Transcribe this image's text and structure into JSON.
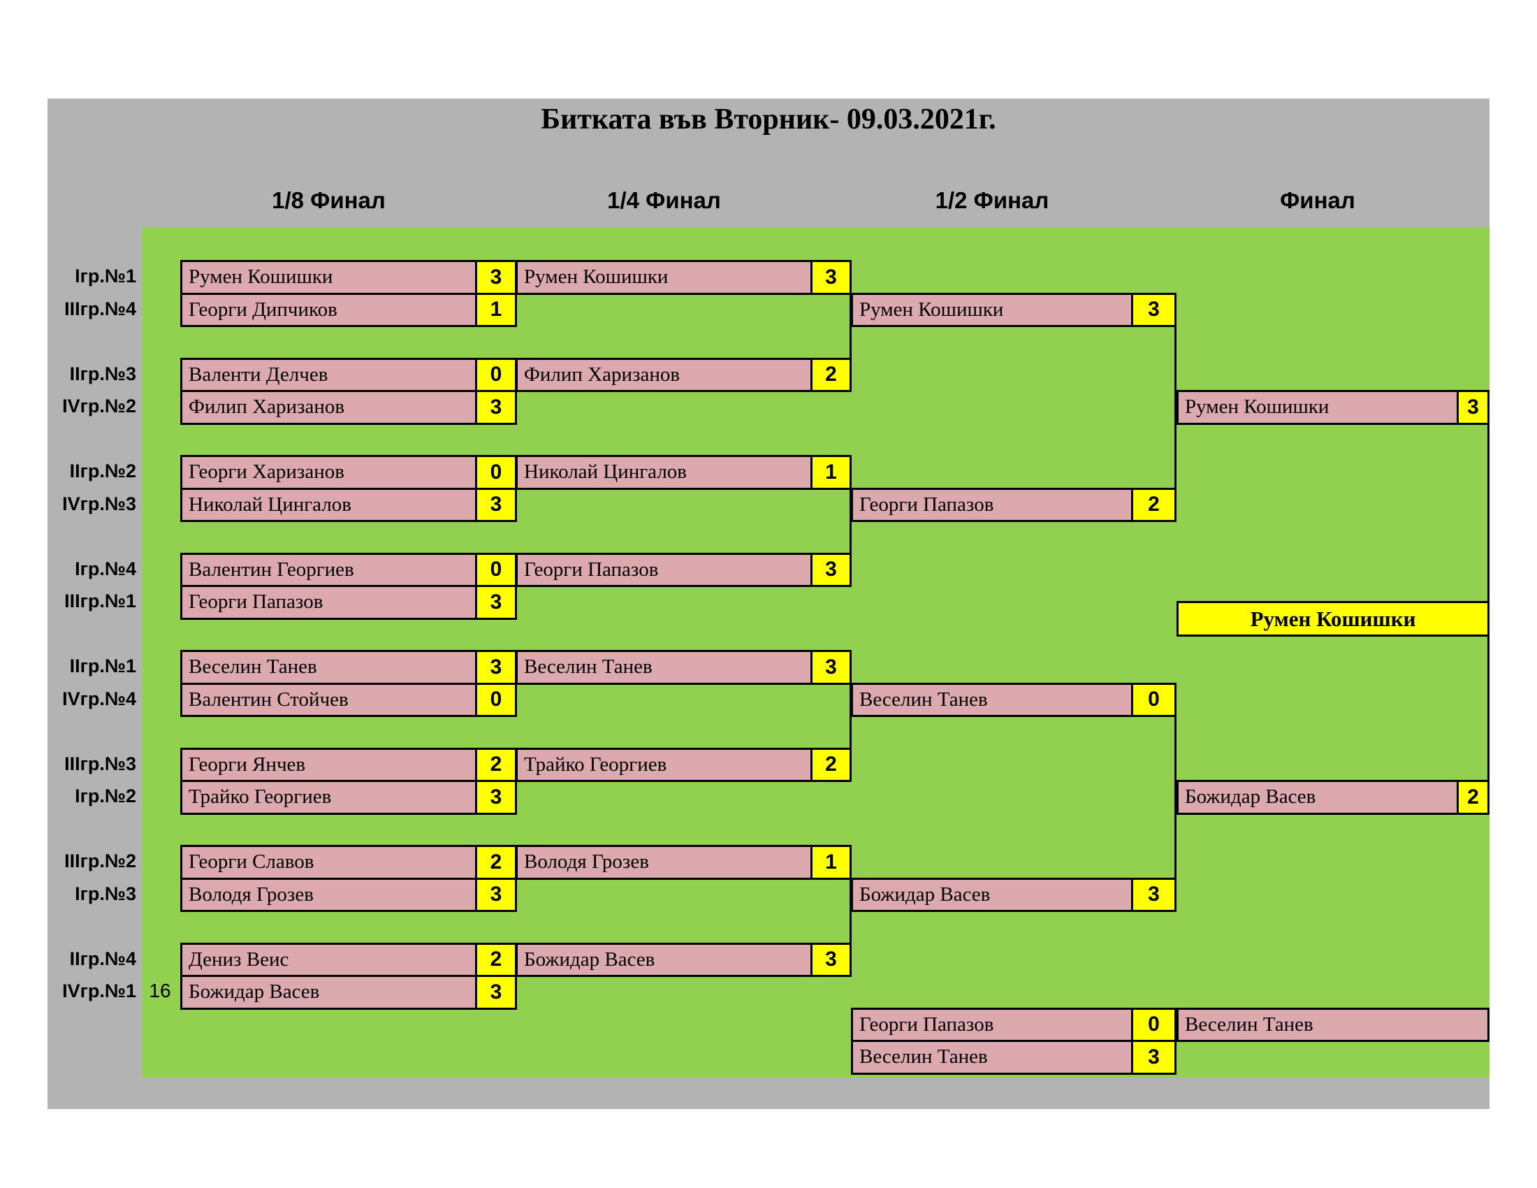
{
  "title": "Битката във Вторник- 09.03.2021г.",
  "headers": [
    "1/8 Финал",
    "1/4 Финал",
    "1/2 Финал",
    "Финал"
  ],
  "left_labels": [
    "Iгр.№1",
    "IIIгр.№4",
    "IIгр.№3",
    "IVгр.№2",
    "IIгр.№2",
    "IVгр.№3",
    "Iгр.№4",
    "IIIгр.№1",
    "IIгр.№1",
    "IVгр.№4",
    "IIIгр.№3",
    "Iгр.№2",
    "IIIгр.№2",
    "Iгр.№3",
    "IIгр.№4",
    "IVгр.№1"
  ],
  "seed_note": "16",
  "colors": {
    "background": "#b3b3b3",
    "field": "#92d050",
    "player_box": "#dcaaae",
    "score_box": "#ffff00",
    "champion_box": "#ffff00",
    "border": "#000000"
  },
  "bracket": {
    "r16": [
      {
        "p1": "Румен Кошишки",
        "s1": "3",
        "p2": "Георги Дипчиков",
        "s2": "1"
      },
      {
        "p1": "Валенти Делчев",
        "s1": "0",
        "p2": "Филип Харизанов",
        "s2": "3"
      },
      {
        "p1": "Георги Харизанов",
        "s1": "0",
        "p2": "Николай Цингалов",
        "s2": "3"
      },
      {
        "p1": "Валентин Георгиев",
        "s1": "0",
        "p2": "Георги Папазов",
        "s2": "3"
      },
      {
        "p1": "Веселин Танев",
        "s1": "3",
        "p2": "Валентин Стойчев",
        "s2": "0"
      },
      {
        "p1": "Георги Янчев",
        "s1": "2",
        "p2": "Трайко Георгиев",
        "s2": "3"
      },
      {
        "p1": "Георги Славов",
        "s1": "2",
        "p2": "Володя Грозев",
        "s2": "3"
      },
      {
        "p1": "Дениз Веис",
        "s1": "2",
        "p2": "Божидар Васев",
        "s2": "3"
      }
    ],
    "qf": [
      {
        "p1": "Румен Кошишки",
        "s1": "3",
        "p2": "Филип Харизанов",
        "s2": "2"
      },
      {
        "p1": "Николай Цингалов",
        "s1": "1",
        "p2": "Георги Папазов",
        "s2": "3"
      },
      {
        "p1": "Веселин Танев",
        "s1": "3",
        "p2": "Трайко Георгиев",
        "s2": "2"
      },
      {
        "p1": "Володя Грозев",
        "s1": "1",
        "p2": "Божидар Васев",
        "s2": "3"
      }
    ],
    "sf": [
      {
        "p1": "Румен Кошишки",
        "s1": "3",
        "p2": "Георги Папазов",
        "s2": "2"
      },
      {
        "p1": "Веселин Танев",
        "s1": "0",
        "p2": "Божидар Васев",
        "s2": "3"
      }
    ],
    "final": {
      "p1": "Румен Кошишки",
      "s1": "3",
      "p2": "Божидар Васев",
      "s2": "2"
    },
    "champion": "Румен Кошишки",
    "third_place": {
      "p1": "Георги Папазов",
      "s1": "0",
      "p2": "Веселин Танев",
      "s2": "3",
      "winner": "Веселин Танев"
    }
  }
}
